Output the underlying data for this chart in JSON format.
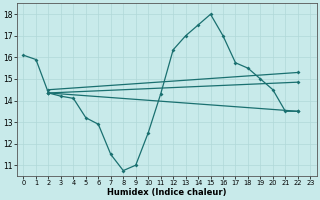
{
  "bg_color": "#c8eaea",
  "line_color": "#1a7070",
  "grid_color": "#b0d8d8",
  "xlabel": "Humidex (Indice chaleur)",
  "xlim": [
    -0.5,
    23.5
  ],
  "ylim": [
    10.5,
    18.5
  ],
  "yticks": [
    11,
    12,
    13,
    14,
    15,
    16,
    17,
    18
  ],
  "xticks": [
    0,
    1,
    2,
    3,
    4,
    5,
    6,
    7,
    8,
    9,
    10,
    11,
    12,
    13,
    14,
    15,
    16,
    17,
    18,
    19,
    20,
    21,
    22,
    23
  ],
  "series": [
    {
      "x": [
        0,
        1,
        2,
        3,
        4,
        5,
        6,
        7,
        8,
        9,
        10,
        11,
        12,
        13,
        14,
        15,
        16,
        17,
        18,
        19,
        20,
        21,
        22
      ],
      "y": [
        16.1,
        15.9,
        14.35,
        14.2,
        14.1,
        13.2,
        12.9,
        11.5,
        10.75,
        11.0,
        12.5,
        14.3,
        16.35,
        17.0,
        17.5,
        18.0,
        17.0,
        15.75,
        15.5,
        15.0,
        14.5,
        13.5,
        13.5
      ]
    },
    {
      "x": [
        2,
        22
      ],
      "y": [
        14.5,
        15.3
      ]
    },
    {
      "x": [
        2,
        22
      ],
      "y": [
        14.35,
        14.85
      ]
    },
    {
      "x": [
        2,
        22
      ],
      "y": [
        14.35,
        13.5
      ]
    }
  ]
}
